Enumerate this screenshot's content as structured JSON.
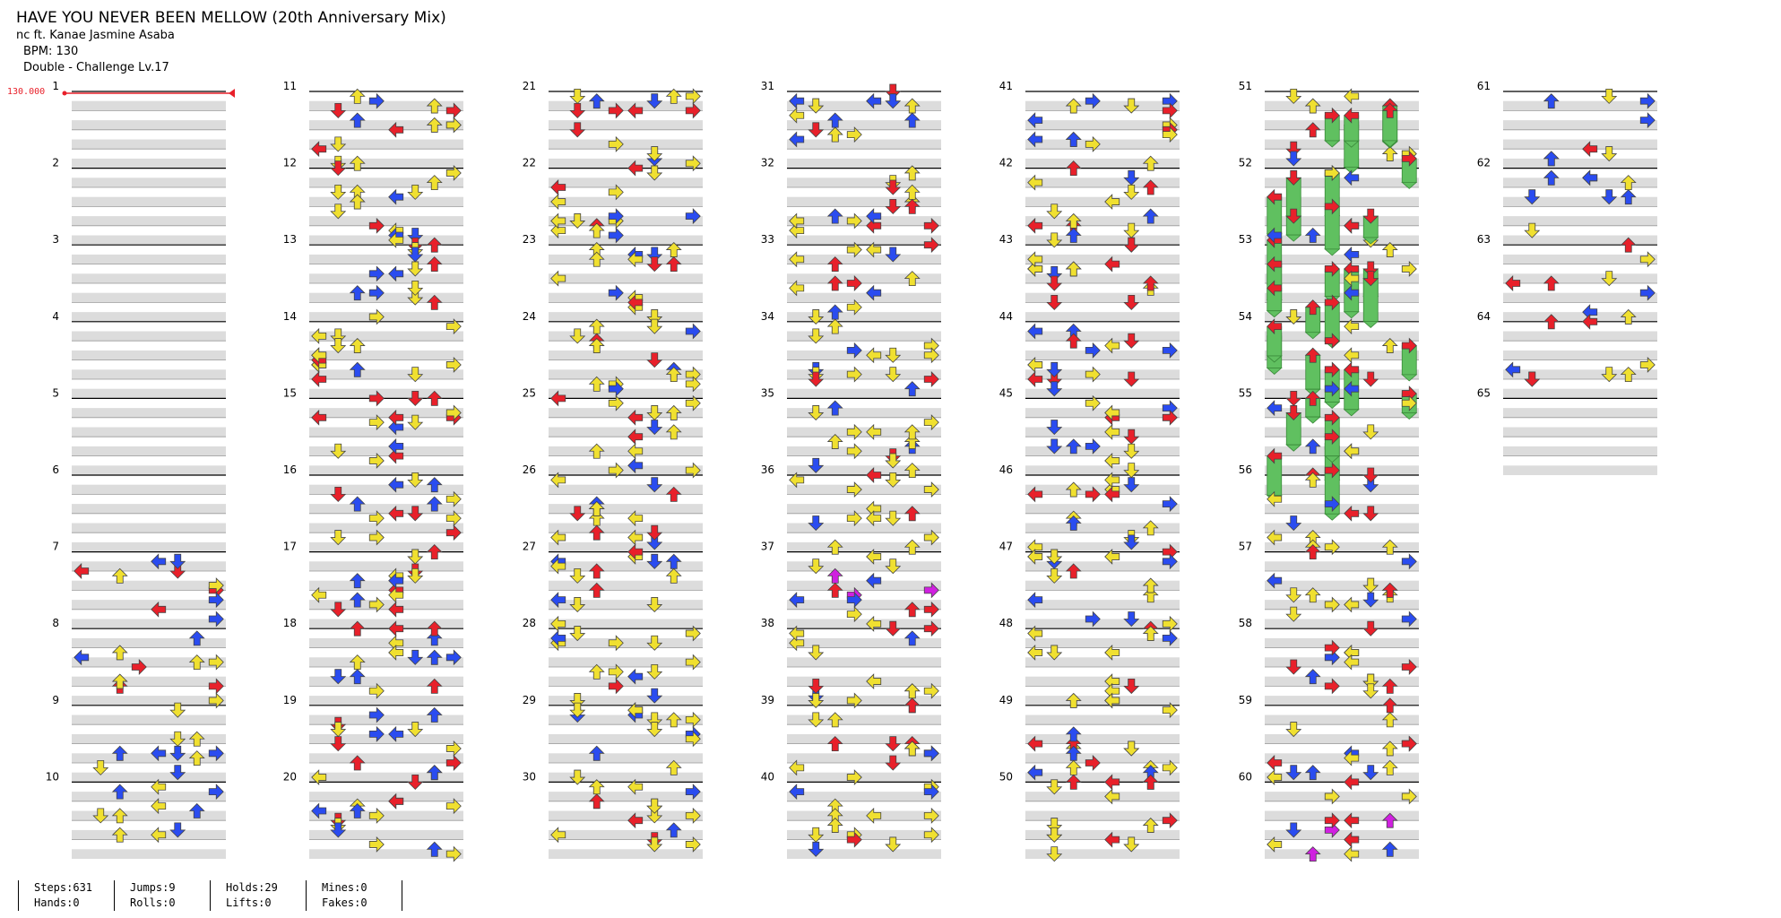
{
  "song": {
    "title": "HAVE YOU NEVER BEEN MELLOW (20th Anniversary Mix)",
    "artist": "nc ft. Kanae Jasmine Asaba",
    "bpm": "BPM: 130",
    "difficulty": "Double - Challenge Lv.17",
    "bpm_marker": "130.000"
  },
  "colors": {
    "quarter": "#e8202a",
    "eighth": "#2a4cf0",
    "sixteenth": "#f0e030",
    "hold": "#60c060",
    "roll": "#d020e0",
    "bpm": "#e8202a",
    "shade": "#dcdcdc"
  },
  "chart": {
    "columns": 7,
    "measures_per_column": 10,
    "last_measure": 65,
    "measure_labels": [
      "1",
      "2",
      "3",
      "4",
      "5",
      "6",
      "7",
      "8",
      "9",
      "10",
      "11",
      "12",
      "13",
      "14",
      "15",
      "16",
      "17",
      "18",
      "19",
      "20",
      "21",
      "22",
      "23",
      "24",
      "25",
      "26",
      "27",
      "28",
      "29",
      "30",
      "31",
      "32",
      "33",
      "34",
      "35",
      "36",
      "37",
      "38",
      "39",
      "40",
      "41",
      "42",
      "43",
      "44",
      "45",
      "46",
      "47",
      "48",
      "49",
      "50",
      "51",
      "52",
      "53",
      "54",
      "55",
      "56",
      "57",
      "58",
      "59",
      "60",
      "61",
      "62",
      "63",
      "64",
      "65"
    ]
  },
  "stats": {
    "steps": "Steps:631",
    "hands": "Hands:0",
    "jumps": "Jumps:9",
    "rolls": "Rolls:0",
    "holds": "Holds:29",
    "lifts": "Lifts:0",
    "mines": "Mines:0",
    "fakes": "Fakes:0"
  }
}
